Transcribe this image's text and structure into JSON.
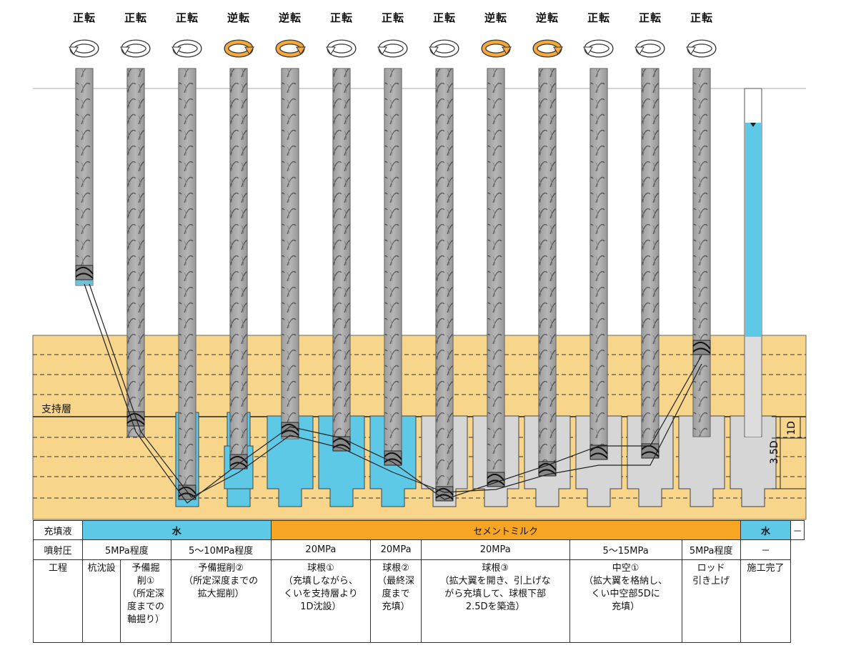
{
  "rotations": [
    "正転",
    "正転",
    "正転",
    "逆転",
    "逆転",
    "正転",
    "正転",
    "正転",
    "逆転",
    "逆転",
    "正転",
    "正転",
    "正転"
  ],
  "colors": {
    "soil": "#f7d58a",
    "water": "#5ec9e6",
    "cement": "#f6a623",
    "pile": "#d6d6d6",
    "normal_rotation": "#ffffff",
    "reverse_rotation": "#f5a93a"
  },
  "labels": {
    "bearing_layer": "支持層",
    "dim_1d": "1D",
    "dim_35d": "3.5D"
  },
  "table": {
    "row_labels": {
      "fluid": "充填液",
      "pressure": "噴射圧",
      "process": "工程"
    },
    "fluid": {
      "water1": "水",
      "cement": "セメントミルク",
      "water2": "水",
      "none": "－"
    },
    "pressure": [
      "5MPa程度",
      "5～10MPa程度",
      "20MPa",
      "20MPa",
      "20MPa",
      "5～15MPa",
      "5MPa程度",
      "－"
    ],
    "process": [
      {
        "lines": [
          "杭沈設"
        ]
      },
      {
        "lines": [
          "予備掘",
          "削①",
          "（所定深",
          "度までの",
          "軸掘り）"
        ]
      },
      {
        "lines": [
          "予備掘削②",
          "（所定深度までの",
          "拡大掘削）"
        ]
      },
      {
        "lines": [
          "球根①",
          "（充填しながら、",
          "くいを支持層より",
          "1D沈設）"
        ]
      },
      {
        "lines": [
          "球根②",
          "（最終深",
          "度まで",
          "充填）"
        ]
      },
      {
        "lines": [
          "球根③",
          "（拡大翼を開き、引上げな",
          "がら充填して、球根下部",
          "2.5Dを築造）"
        ]
      },
      {
        "lines": [
          "中空①",
          "（拡大翼を格納し、",
          "くい中空部5Dに",
          "充填）"
        ]
      },
      {
        "lines": [
          "ロッド",
          "引き上げ"
        ]
      },
      {
        "lines": [
          "施工完了"
        ]
      }
    ]
  }
}
